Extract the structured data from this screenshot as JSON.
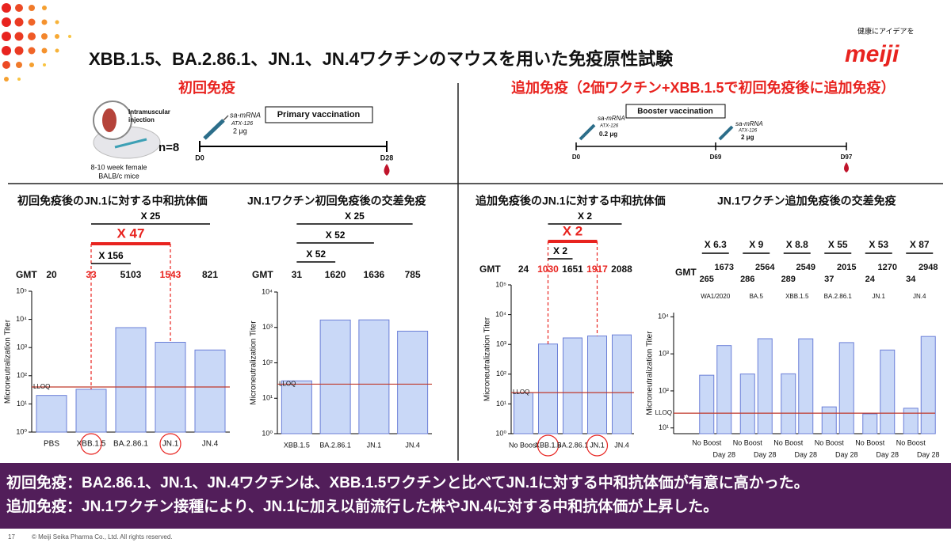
{
  "header": {
    "title": "XBB.1.5、BA.2.86.1、JN.1、JN.4ワクチンのマウスを用いた免疫原性試験",
    "tagline": "健康にアイデアを",
    "logo": "meiji"
  },
  "sections": {
    "primary": "初回免疫",
    "booster": "追加免疫（2価ワクチン+XBB.1.5で初回免疫後に追加免疫）"
  },
  "primary_schema": {
    "injection": [
      "Intramuscular",
      "injection"
    ],
    "mice": [
      "8-10 week female",
      "BALB/c mice"
    ],
    "n": "n=8",
    "vaccine": [
      "sa-mRNA",
      "ATX-126",
      "2 μg"
    ],
    "label": "Primary vaccination",
    "days": [
      "D0",
      "D28"
    ]
  },
  "booster_schema": {
    "label": "Booster vaccination",
    "doses": [
      [
        "sa-mRNA",
        "ATX-126",
        "0.2 μg"
      ],
      [
        "sa-mRNA",
        "ATX-126",
        "2 μg"
      ]
    ],
    "days": [
      "D0",
      "D69",
      "D97"
    ]
  },
  "chart_data": [
    {
      "type": "bar",
      "title": "初回免疫後のJN.1に対する中和抗体価",
      "y_label": "Microneutralization Titer",
      "gmt_label": "GMT",
      "categories": [
        "PBS",
        "XBB.1.5",
        "BA.2.86.1",
        "JN.1",
        "JN.4"
      ],
      "values": [
        20,
        33,
        5103,
        1543,
        821
      ],
      "color": "#c9d8f7",
      "log_y": true,
      "ylim": [
        1,
        100000
      ],
      "yticks": [
        {
          "value": 1,
          "label": "10⁰"
        },
        {
          "value": 10,
          "label": "10¹"
        },
        {
          "value": 100,
          "label": "10²"
        },
        {
          "value": 1000,
          "label": "10³"
        },
        {
          "value": 10000,
          "label": "10⁴"
        },
        {
          "value": 100000,
          "label": "10⁵"
        }
      ],
      "lloq": {
        "label": "LLOQ",
        "value": 40
      },
      "lloq_color": "#c0392b",
      "highlight": [
        "XBB.1.5",
        "JN.1"
      ],
      "highlight_color": "#e8231f",
      "comparisons": [
        {
          "label": "X 25",
          "from": "XBB.1.5",
          "to": "JN.4"
        },
        {
          "label": "X 47",
          "from": "XBB.1.5",
          "to": "JN.1",
          "highlight": true
        },
        {
          "label": "X 156",
          "from": "XBB.1.5",
          "to": "BA.2.86.1"
        }
      ]
    },
    {
      "type": "bar",
      "title": "JN.1ワクチン初回免疫後の交差免疫",
      "y_label": "Microneutralization Titer",
      "gmt_label": "GMT",
      "categories": [
        "XBB.1.5",
        "BA.2.86.1",
        "JN.1",
        "JN.4"
      ],
      "values": [
        31,
        1620,
        1636,
        785
      ],
      "color": "#c9d8f7",
      "log_y": true,
      "ylim": [
        1,
        10000
      ],
      "yticks": [
        {
          "value": 1,
          "label": "10⁰"
        },
        {
          "value": 10,
          "label": "10¹"
        },
        {
          "value": 100,
          "label": "10²"
        },
        {
          "value": 1000,
          "label": "10³"
        },
        {
          "value": 10000,
          "label": "10⁴"
        }
      ],
      "lloq": {
        "label": "LLOQ",
        "value": 25
      },
      "lloq_color": "#c0392b",
      "comparisons": [
        {
          "label": "X 25",
          "from": "XBB.1.5",
          "to": "JN.4"
        },
        {
          "label": "X 52",
          "from": "XBB.1.5",
          "to": "JN.1"
        },
        {
          "label": "X 52",
          "from": "XBB.1.5",
          "to": "BA.2.86.1"
        }
      ]
    },
    {
      "type": "bar",
      "title": "追加免疫後のJN.1に対する中和抗体価",
      "y_label": "Microneutralization Titer",
      "gmt_label": "GMT",
      "categories": [
        "No Boost",
        "XBB.1.5",
        "BA.2.86.1",
        "JN.1",
        "JN.4"
      ],
      "values": [
        24,
        1030,
        1651,
        1917,
        2088
      ],
      "color": "#c9d8f7",
      "log_y": true,
      "ylim": [
        1,
        100000
      ],
      "yticks": [
        {
          "value": 1,
          "label": "10⁰"
        },
        {
          "value": 10,
          "label": "10¹"
        },
        {
          "value": 100,
          "label": "10²"
        },
        {
          "value": 1000,
          "label": "10³"
        },
        {
          "value": 10000,
          "label": "10⁴"
        },
        {
          "value": 100000,
          "label": "10⁵"
        }
      ],
      "lloq": {
        "label": "LLOQ",
        "value": 24
      },
      "lloq_color": "#c0392b",
      "highlight": [
        "XBB.1.5",
        "JN.1"
      ],
      "highlight_color": "#e8231f",
      "comparisons": [
        {
          "label": "X 2",
          "from": "XBB.1.5",
          "to": "JN.4"
        },
        {
          "label": "X 2",
          "from": "XBB.1.5",
          "to": "JN.1",
          "highlight": true
        },
        {
          "label": "X 2",
          "from": "XBB.1.5",
          "to": "BA.2.86.1"
        }
      ]
    },
    {
      "type": "grouped_bar",
      "title": "JN.1ワクチン追加免疫後の交差免疫",
      "y_label": "Microneutralization Titer",
      "gmt_label": "GMT",
      "categories": [
        "WA1/2020",
        "BA.5",
        "XBB.1.5",
        "BA.2.86.1",
        "JN.1",
        "JN.4"
      ],
      "series": [
        {
          "name": "No Boost",
          "color": "#c9d8f7",
          "values": [
            265,
            286,
            289,
            37,
            24,
            34
          ]
        },
        {
          "name": "Day 28",
          "color": "#c9d8f7",
          "values": [
            1673,
            2564,
            2549,
            2015,
            1270,
            2948
          ]
        }
      ],
      "fold_labels": [
        "X 6.3",
        "X 9",
        "X 8.8",
        "X 55",
        "X 53",
        "X 87"
      ],
      "log_y": true,
      "ylim": [
        7,
        13000
      ],
      "yticks": [
        {
          "value": 10,
          "label": "10¹"
        },
        {
          "value": 100,
          "label": "10²"
        },
        {
          "value": 1000,
          "label": "10³"
        },
        {
          "value": 10000,
          "label": "10⁴"
        }
      ],
      "lloq": {
        "label": "LLOQ",
        "value": 25
      },
      "lloq_color": "#c0392b"
    }
  ],
  "conclusions": [
    "初回免疫：BA2.86.1、JN.1、JN.4ワクチンは、XBB.1.5ワクチンと比べてJN.1に対する中和抗体価が有意に高かった。",
    "追加免疫：JN.1ワクチン接種により、JN.1に加え以前流行した株やJN.4に対する中和抗体価が上昇した。"
  ],
  "footer": {
    "page": "17",
    "copyright": "© Meiji Seika Pharma Co., Ltd. All rights reserved."
  }
}
